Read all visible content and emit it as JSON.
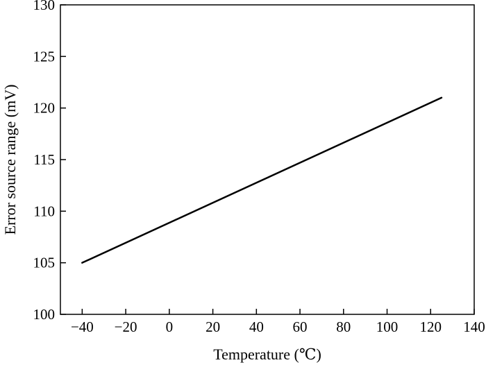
{
  "chart_data": {
    "type": "line",
    "title": "",
    "xlabel": "Temperature (℃)",
    "ylabel": "Error source range (mV)",
    "xlim": [
      -50,
      140
    ],
    "ylim": [
      100,
      130
    ],
    "xticks": [
      -40,
      -20,
      0,
      20,
      40,
      60,
      80,
      100,
      120,
      140
    ],
    "xtick_labels": [
      "−40",
      "−20",
      "0",
      "20",
      "40",
      "60",
      "80",
      "100",
      "120",
      "140"
    ],
    "yticks": [
      100,
      105,
      110,
      115,
      120,
      125,
      130
    ],
    "ytick_labels": [
      "100",
      "105",
      "110",
      "115",
      "120",
      "125",
      "130"
    ],
    "grid": false,
    "series": [
      {
        "x": [
          -40,
          125
        ],
        "y": [
          105,
          121
        ]
      }
    ]
  }
}
